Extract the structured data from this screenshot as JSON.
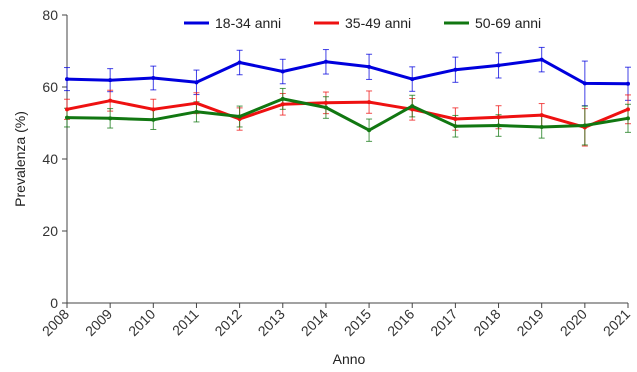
{
  "chart_data": {
    "type": "line",
    "xlabel": "Anno",
    "ylabel": "Prevalenza (%)",
    "ylim": [
      0,
      80
    ],
    "yticks": [
      0,
      20,
      40,
      60,
      80
    ],
    "x": [
      "2008",
      "2009",
      "2010",
      "2011",
      "2012",
      "2013",
      "2014",
      "2015",
      "2016",
      "2017",
      "2018",
      "2019",
      "2020",
      "2021"
    ],
    "grid": false,
    "error_bars": true,
    "legend_position": "top",
    "series": [
      {
        "name": "18-34 anni",
        "color": "#0000dd",
        "values": [
          62.2,
          61.9,
          62.5,
          61.3,
          66.8,
          64.3,
          67.0,
          65.6,
          62.2,
          64.8,
          66.0,
          67.6,
          61.0,
          60.9
        ],
        "err": [
          3.2,
          3.2,
          3.3,
          3.4,
          3.4,
          3.4,
          3.4,
          3.5,
          3.4,
          3.5,
          3.5,
          3.4,
          6.2,
          4.6
        ]
      },
      {
        "name": "35-49 anni",
        "color": "#ee1111",
        "values": [
          53.8,
          56.2,
          53.8,
          55.5,
          51.1,
          55.2,
          55.6,
          55.8,
          53.8,
          51.1,
          51.6,
          52.2,
          48.8,
          53.8
        ],
        "err": [
          2.8,
          2.9,
          2.8,
          2.9,
          3.1,
          3.0,
          3.0,
          3.1,
          3.0,
          3.1,
          3.2,
          3.2,
          5.2,
          4.0
        ]
      },
      {
        "name": "50-69 anni",
        "color": "#117711",
        "values": [
          51.5,
          51.3,
          50.9,
          53.1,
          51.8,
          56.7,
          54.3,
          48.0,
          54.7,
          49.1,
          49.3,
          48.9,
          49.3,
          51.3
        ],
        "err": [
          2.6,
          2.7,
          2.7,
          2.8,
          2.9,
          2.9,
          3.0,
          3.1,
          3.0,
          3.0,
          3.0,
          3.1,
          5.4,
          3.9
        ]
      }
    ]
  }
}
